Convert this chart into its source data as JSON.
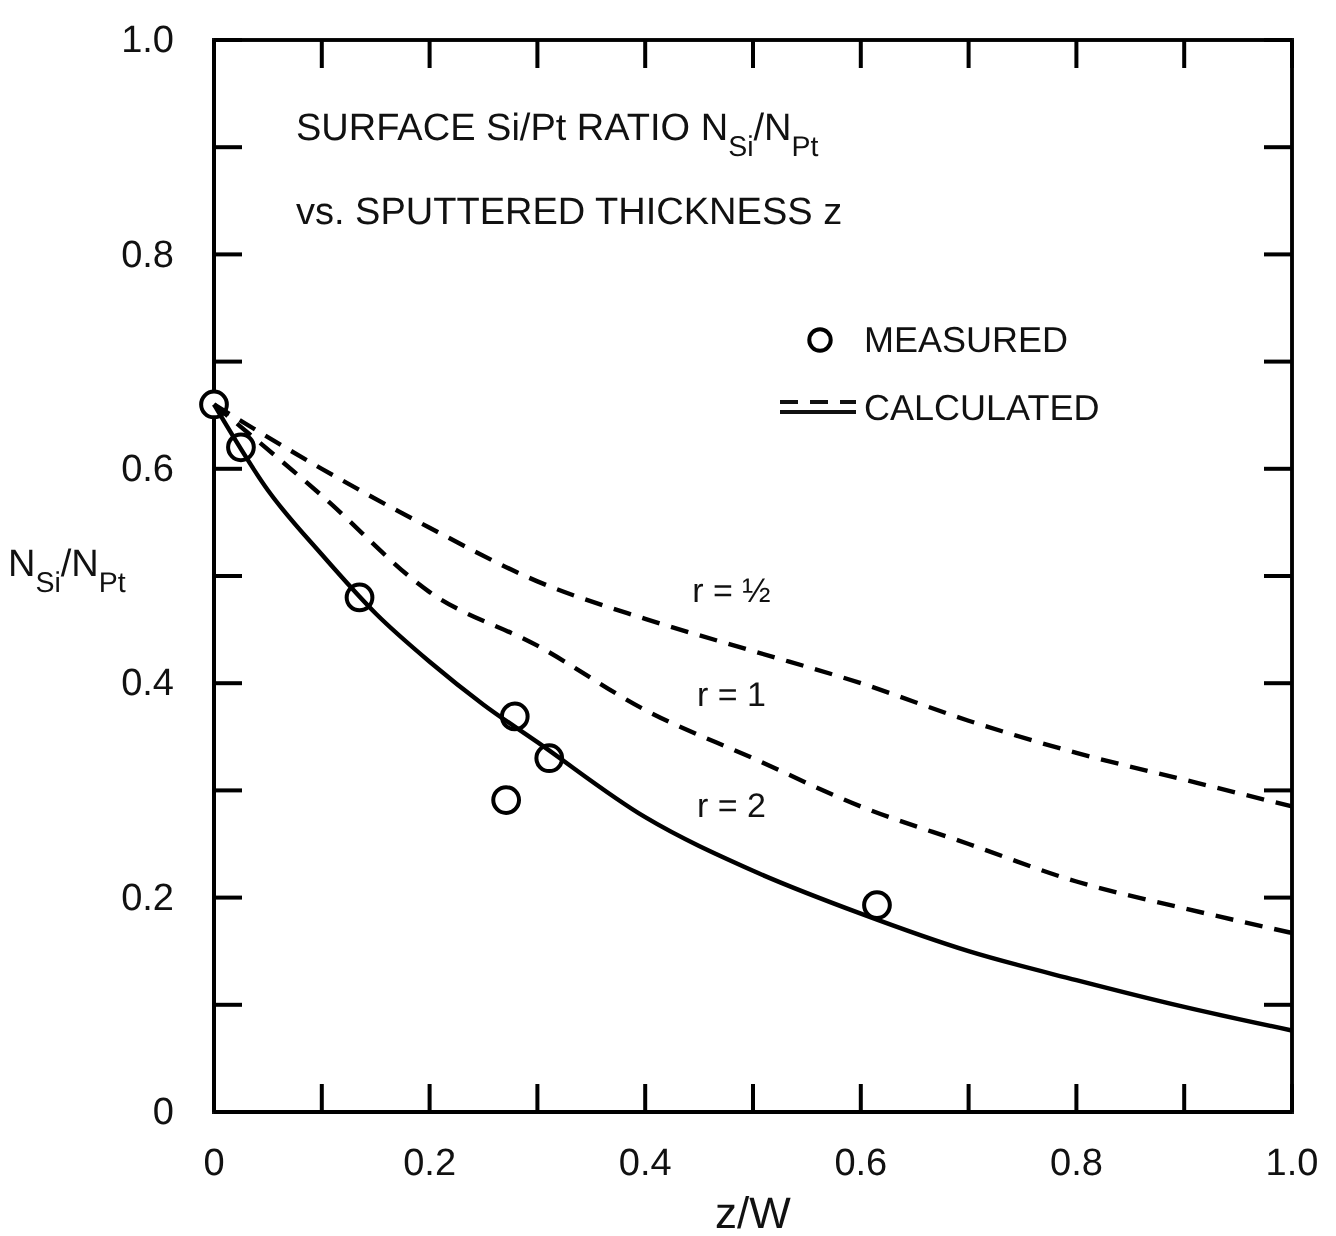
{
  "chart_data": {
    "type": "line",
    "title": "SURFACE Si/Pt RATIO N$_{Si}$/N$_{Pt}$",
    "subtitle": "vs. SPUTTERED THICKNESS z",
    "xlabel": "z/W",
    "ylabel": "N$_{Si}$/N$_{Pt}$",
    "xlim": [
      0,
      1
    ],
    "ylim": [
      0,
      1
    ],
    "xticks": [
      0,
      {
        "value": 0.1,
        "label": null
      },
      0.2,
      {
        "value": 0.3,
        "label": null
      },
      0.4,
      {
        "value": 0.5,
        "label": null
      },
      0.6,
      {
        "value": 0.7,
        "label": null
      },
      0.8,
      {
        "value": 0.9,
        "label": null
      },
      {
        "value": 1,
        "label": "1.0"
      }
    ],
    "yticks": [
      0,
      {
        "value": 0.1,
        "label": null
      },
      0.2,
      {
        "value": 0.3,
        "label": null
      },
      0.4,
      {
        "value": 0.5,
        "label": null
      },
      0.6,
      {
        "value": 0.7,
        "label": null
      },
      0.8,
      {
        "value": 0.9,
        "label": null
      },
      {
        "value": 1,
        "label": "1.0"
      }
    ],
    "grid": false,
    "legend": "top right",
    "annotations": [
      "CALCULATED"
    ],
    "series": [
      {
        "name": "MEASURED",
        "type": "scatter",
        "marker": "circle",
        "color": "#000000",
        "x": [
          0,
          0.025,
          0.135,
          0.279,
          0.311,
          0.271,
          0.615
        ],
        "values": [
          0.66,
          0.62,
          0.48,
          0.369,
          0.33,
          0.291,
          0.193
        ]
      },
      {
        "name": "r = ½",
        "line_style": "dashed",
        "color": "#000000",
        "x": [
          0,
          0.1,
          0.2,
          0.3,
          0.4,
          0.5,
          0.6,
          0.7,
          0.8,
          0.9,
          1.0
        ],
        "values": [
          0.66,
          0.6,
          0.545,
          0.495,
          0.46,
          0.43,
          0.4,
          0.365,
          0.335,
          0.31,
          0.285
        ]
      },
      {
        "name": "r = 1",
        "line_style": "dashed",
        "color": "#000000",
        "x": [
          0,
          0.1,
          0.2,
          0.3,
          0.4,
          0.5,
          0.6,
          0.7,
          0.8,
          0.9,
          1.0
        ],
        "values": [
          0.66,
          0.575,
          0.485,
          0.435,
          0.375,
          0.33,
          0.285,
          0.25,
          0.215,
          0.19,
          0.167
        ]
      },
      {
        "name": "r = 2",
        "line_style": "solid",
        "color": "#000000",
        "x": [
          0,
          0.05,
          0.1,
          0.15,
          0.2,
          0.25,
          0.3,
          0.4,
          0.5,
          0.6,
          0.7,
          0.8,
          0.9,
          1.0
        ],
        "values": [
          0.66,
          0.58,
          0.52,
          0.465,
          0.42,
          0.38,
          0.345,
          0.275,
          0.225,
          0.185,
          0.15,
          0.123,
          0.098,
          0.076
        ]
      }
    ]
  }
}
